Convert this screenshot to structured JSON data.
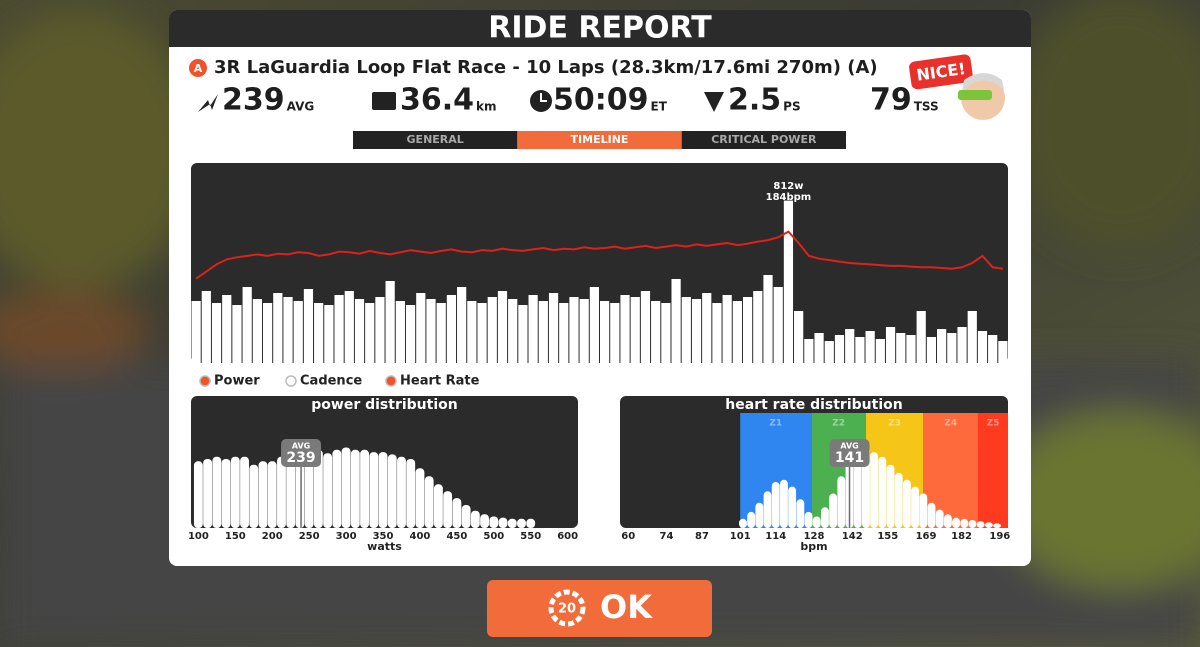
{
  "header": {
    "title": "RIDE REPORT"
  },
  "route": {
    "badge": "A",
    "name": "3R LaGuardia Loop Flat Race - 10 Laps (28.3km/17.6mi 270m) (A)"
  },
  "stats": [
    {
      "value": "239",
      "unit": "AVG"
    },
    {
      "value": "36.4",
      "unit": "km"
    },
    {
      "value": "50:09",
      "unit": "ET"
    },
    {
      "value": "2.5",
      "unit": "PS"
    },
    {
      "value": "79",
      "unit": "TSS"
    }
  ],
  "badge": "NICE!",
  "tabs": {
    "items": [
      "GENERAL",
      "TIMELINE",
      "CRITICAL POWER"
    ],
    "active": 1
  },
  "timeline": {
    "power": {
      "name": "Power",
      "color": "#ffffff",
      "values": [
        310,
        360,
        300,
        340,
        290,
        380,
        320,
        300,
        350,
        330,
        310,
        370,
        300,
        290,
        340,
        360,
        320,
        300,
        330,
        410,
        310,
        290,
        350,
        320,
        300,
        340,
        380,
        310,
        300,
        330,
        360,
        320,
        290,
        340,
        310,
        350,
        300,
        330,
        320,
        380,
        310,
        300,
        340,
        330,
        360,
        310,
        300,
        420,
        330,
        320,
        350,
        300,
        340,
        310,
        330,
        360,
        440,
        380,
        812,
        260,
        120,
        150,
        110,
        140,
        170,
        130,
        160,
        120,
        180,
        150,
        140,
        260,
        130,
        170,
        150,
        180,
        260,
        160,
        140,
        110
      ]
    },
    "cadence": {
      "name": "Cadence"
    },
    "heart_rate": {
      "name": "Heart Rate",
      "color": "#e0201a",
      "values": [
        118,
        128,
        138,
        145,
        148,
        150,
        152,
        150,
        153,
        152,
        155,
        154,
        150,
        152,
        156,
        155,
        153,
        157,
        154,
        152,
        155,
        158,
        156,
        154,
        157,
        159,
        156,
        155,
        158,
        157,
        160,
        158,
        157,
        159,
        161,
        158,
        160,
        159,
        162,
        160,
        161,
        163,
        160,
        162,
        164,
        161,
        163,
        165,
        163,
        166,
        164,
        166,
        168,
        165,
        167,
        170,
        172,
        176,
        184,
        168,
        150,
        146,
        144,
        142,
        140,
        139,
        138,
        137,
        136,
        136,
        135,
        134,
        134,
        133,
        132,
        134,
        140,
        150,
        134,
        132
      ]
    },
    "ylim": [
      0,
      1000
    ],
    "y2lim": [
      0,
      280
    ],
    "annotations": [
      "812w",
      "184bpm"
    ]
  },
  "power_distribution": {
    "title": "power distribution",
    "xlabel": "watts",
    "x": [
      100,
      112.5,
      125,
      137.5,
      150,
      162.5,
      175,
      187.5,
      200,
      212.5,
      225,
      237.5,
      250,
      262.5,
      275,
      287.5,
      300,
      312.5,
      325,
      337.5,
      350,
      362.5,
      375,
      387.5,
      400,
      412.5,
      425,
      437.5,
      450,
      462.5,
      475,
      487.5,
      500,
      512.5,
      525,
      537.5,
      550
    ],
    "values": [
      58,
      60,
      62,
      60,
      62,
      62,
      55,
      58,
      58,
      62,
      62,
      65,
      66,
      68,
      65,
      68,
      70,
      68,
      68,
      66,
      66,
      64,
      62,
      60,
      52,
      45,
      38,
      32,
      26,
      20,
      15,
      12,
      10,
      9,
      8,
      8,
      8
    ],
    "xlim": [
      90,
      614
    ],
    "xticks": [
      100,
      150,
      200,
      250,
      300,
      350,
      400,
      450,
      500,
      550,
      600
    ],
    "ylim": [
      0,
      100
    ],
    "avg": {
      "label": "AVG",
      "value": 239
    }
  },
  "hr_distribution": {
    "title": "heart rate distribution",
    "xlabel": "bpm",
    "x": [
      102,
      105,
      108,
      111,
      114,
      117,
      120,
      123,
      126,
      129,
      132,
      135,
      138,
      141,
      144,
      147,
      150,
      153,
      156,
      159,
      162,
      165,
      168,
      171,
      174,
      177,
      180,
      183,
      186,
      189,
      192,
      195
    ],
    "values": [
      8,
      14,
      22,
      32,
      40,
      42,
      36,
      25,
      14,
      10,
      18,
      30,
      45,
      58,
      66,
      70,
      66,
      62,
      55,
      48,
      42,
      36,
      30,
      22,
      16,
      12,
      9,
      8,
      7,
      6,
      5,
      4
    ],
    "xlim": [
      57,
      199
    ],
    "xticks": [
      60,
      74,
      87,
      101,
      114,
      128,
      142,
      155,
      169,
      182,
      196
    ],
    "ylim": [
      0,
      100
    ],
    "zones": [
      {
        "name": "Z1",
        "from": 101,
        "to": 127,
        "color": "#2f86f0"
      },
      {
        "name": "Z2",
        "from": 127,
        "to": 147,
        "color": "#4caf50"
      },
      {
        "name": "Z3",
        "from": 147,
        "to": 168,
        "color": "#f5c518"
      },
      {
        "name": "Z4",
        "from": 168,
        "to": 188,
        "color": "#ff6a3d"
      },
      {
        "name": "Z5",
        "from": 188,
        "to": 199,
        "color": "#ff3b1f"
      }
    ],
    "avg": {
      "label": "AVG",
      "value": 141
    }
  },
  "button": {
    "count": "20",
    "label": "OK"
  }
}
